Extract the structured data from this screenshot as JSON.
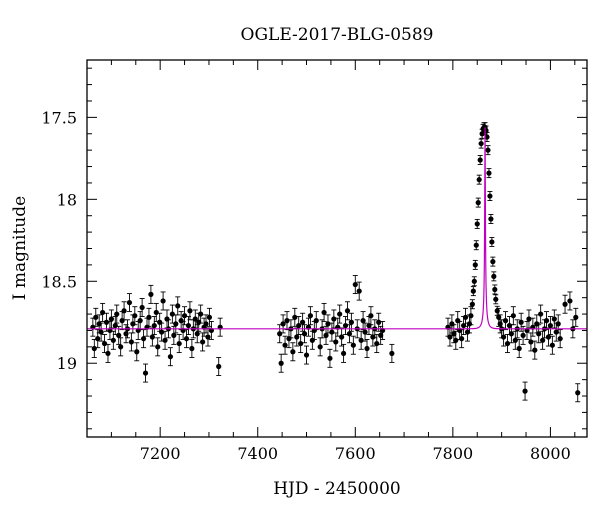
{
  "chart_data": {
    "type": "scatter",
    "title": "OGLE-2017-BLG-0589",
    "xlabel": "HJD - 2450000",
    "ylabel": "I magnitude",
    "xlim": [
      7050,
      8075
    ],
    "ylim": [
      19.45,
      17.15
    ],
    "y_inverted": true,
    "grid": false,
    "legend": "none",
    "x_ticks": [
      7200,
      7400,
      7600,
      7800,
      8000
    ],
    "y_ticks": [
      17.5,
      18,
      18.5,
      19
    ],
    "x_tick_labels": [
      "7200",
      "7400",
      "7600",
      "7800",
      "8000"
    ],
    "y_tick_labels": [
      "17.5",
      "18",
      "18.5",
      "19"
    ],
    "colors": {
      "points": "#000000",
      "model": "#c000c0"
    },
    "model": {
      "baseline": 18.79,
      "t0": 7866,
      "peak_mag": 17.56,
      "tE": 7.0,
      "u0": 0.083
    },
    "series": [
      {
        "points": [
          [
            7062,
            18.78
          ],
          [
            7065,
            18.91
          ],
          [
            7068,
            18.72
          ],
          [
            7072,
            18.85
          ],
          [
            7075,
            18.76
          ],
          [
            7079,
            18.81
          ],
          [
            7082,
            18.69
          ],
          [
            7086,
            18.88
          ],
          [
            7090,
            18.75
          ],
          [
            7093,
            18.94
          ],
          [
            7097,
            18.8
          ],
          [
            7100,
            18.73
          ],
          [
            7104,
            18.86
          ],
          [
            7108,
            18.77
          ],
          [
            7111,
            18.7
          ],
          [
            7115,
            18.83
          ],
          [
            7119,
            18.9
          ],
          [
            7122,
            18.74
          ],
          [
            7126,
            18.68
          ],
          [
            7130,
            18.82
          ],
          [
            7133,
            18.79
          ],
          [
            7137,
            18.63
          ],
          [
            7141,
            18.87
          ],
          [
            7144,
            18.76
          ],
          [
            7148,
            18.71
          ],
          [
            7152,
            18.93
          ],
          [
            7155,
            18.8
          ],
          [
            7159,
            18.74
          ],
          [
            7163,
            18.66
          ],
          [
            7166,
            18.85
          ],
          [
            7170,
            19.06
          ],
          [
            7173,
            18.78
          ],
          [
            7177,
            18.72
          ],
          [
            7181,
            18.58
          ],
          [
            7184,
            18.84
          ],
          [
            7188,
            18.77
          ],
          [
            7192,
            18.69
          ],
          [
            7195,
            18.9
          ],
          [
            7199,
            18.75
          ],
          [
            7203,
            18.81
          ],
          [
            7206,
            18.62
          ],
          [
            7210,
            18.86
          ],
          [
            7214,
            18.73
          ],
          [
            7217,
            18.79
          ],
          [
            7221,
            18.96
          ],
          [
            7225,
            18.7
          ],
          [
            7228,
            18.83
          ],
          [
            7232,
            18.76
          ],
          [
            7236,
            18.65
          ],
          [
            7239,
            18.88
          ],
          [
            7243,
            18.74
          ],
          [
            7247,
            18.8
          ],
          [
            7250,
            18.71
          ],
          [
            7254,
            18.85
          ],
          [
            7258,
            18.77
          ],
          [
            7261,
            18.68
          ],
          [
            7265,
            18.91
          ],
          [
            7268,
            18.79
          ],
          [
            7272,
            18.73
          ],
          [
            7276,
            18.82
          ],
          [
            7279,
            18.75
          ],
          [
            7283,
            18.7
          ],
          [
            7287,
            18.87
          ],
          [
            7290,
            18.78
          ],
          [
            7294,
            18.76
          ],
          [
            7298,
            18.84
          ],
          [
            7301,
            18.72
          ],
          [
            7305,
            18.8
          ],
          [
            7320,
            19.02
          ],
          [
            7323,
            18.78
          ],
          [
            7445,
            18.82
          ],
          [
            7448,
            19.0
          ],
          [
            7452,
            18.76
          ],
          [
            7456,
            18.89
          ],
          [
            7460,
            18.74
          ],
          [
            7464,
            18.85
          ],
          [
            7468,
            18.79
          ],
          [
            7472,
            18.93
          ],
          [
            7476,
            18.72
          ],
          [
            7480,
            18.84
          ],
          [
            7484,
            18.77
          ],
          [
            7488,
            18.88
          ],
          [
            7492,
            18.75
          ],
          [
            7496,
            18.82
          ],
          [
            7500,
            18.95
          ],
          [
            7504,
            18.78
          ],
          [
            7508,
            18.71
          ],
          [
            7512,
            18.86
          ],
          [
            7516,
            18.8
          ],
          [
            7520,
            18.74
          ],
          [
            7528,
            18.9
          ],
          [
            7532,
            18.79
          ],
          [
            7536,
            18.69
          ],
          [
            7540,
            18.83
          ],
          [
            7544,
            18.76
          ],
          [
            7548,
            18.97
          ],
          [
            7552,
            18.81
          ],
          [
            7556,
            18.73
          ],
          [
            7560,
            18.87
          ],
          [
            7564,
            18.78
          ],
          [
            7568,
            18.7
          ],
          [
            7572,
            18.84
          ],
          [
            7576,
            18.94
          ],
          [
            7580,
            18.77
          ],
          [
            7584,
            18.68
          ],
          [
            7588,
            18.82
          ],
          [
            7592,
            18.75
          ],
          [
            7596,
            18.89
          ],
          [
            7600,
            18.52
          ],
          [
            7604,
            18.79
          ],
          [
            7608,
            18.56
          ],
          [
            7612,
            18.86
          ],
          [
            7616,
            18.74
          ],
          [
            7620,
            18.81
          ],
          [
            7624,
            18.91
          ],
          [
            7628,
            18.77
          ],
          [
            7632,
            18.71
          ],
          [
            7636,
            18.84
          ],
          [
            7640,
            18.79
          ],
          [
            7644,
            18.88
          ],
          [
            7648,
            18.75
          ],
          [
            7652,
            18.83
          ],
          [
            7656,
            18.8
          ],
          [
            7675,
            18.94
          ],
          [
            7790,
            18.78
          ],
          [
            7794,
            18.84
          ],
          [
            7798,
            18.76
          ],
          [
            7802,
            18.82
          ],
          [
            7806,
            18.86
          ],
          [
            7810,
            18.74
          ],
          [
            7814,
            18.8
          ],
          [
            7818,
            18.85
          ],
          [
            7822,
            18.77
          ],
          [
            7826,
            18.72
          ],
          [
            7830,
            18.81
          ],
          [
            7834,
            18.76
          ],
          [
            7837,
            18.71
          ],
          [
            7840,
            18.64
          ],
          [
            7842,
            18.56
          ],
          [
            7844,
            18.5
          ],
          [
            7846,
            18.4
          ],
          [
            7848,
            18.28
          ],
          [
            7850,
            18.15
          ],
          [
            7852,
            18.02
          ],
          [
            7854,
            17.88
          ],
          [
            7856,
            17.76
          ],
          [
            7858,
            17.66
          ],
          [
            7860,
            17.6
          ],
          [
            7862,
            17.57
          ],
          [
            7864,
            17.56
          ],
          [
            7866,
            17.56
          ],
          [
            7868,
            17.58
          ],
          [
            7870,
            17.62
          ],
          [
            7872,
            17.7
          ],
          [
            7874,
            17.84
          ],
          [
            7876,
            17.98
          ],
          [
            7878,
            18.12
          ],
          [
            7880,
            18.26
          ],
          [
            7882,
            18.38
          ],
          [
            7884,
            18.47
          ],
          [
            7886,
            18.55
          ],
          [
            7888,
            18.61
          ],
          [
            7891,
            18.68
          ],
          [
            7894,
            18.72
          ],
          [
            7897,
            18.76
          ],
          [
            7900,
            18.79
          ],
          [
            7904,
            18.84
          ],
          [
            7908,
            18.74
          ],
          [
            7912,
            18.88
          ],
          [
            7916,
            18.77
          ],
          [
            7920,
            18.82
          ],
          [
            7924,
            18.71
          ],
          [
            7928,
            18.86
          ],
          [
            7932,
            18.79
          ],
          [
            7936,
            18.91
          ],
          [
            7940,
            18.75
          ],
          [
            7944,
            18.83
          ],
          [
            7948,
            19.17
          ],
          [
            7952,
            18.8
          ],
          [
            7956,
            18.73
          ],
          [
            7960,
            18.87
          ],
          [
            7964,
            18.78
          ],
          [
            7968,
            18.92
          ],
          [
            7972,
            18.76
          ],
          [
            7976,
            18.82
          ],
          [
            7980,
            18.7
          ],
          [
            7984,
            18.86
          ],
          [
            7988,
            18.79
          ],
          [
            7992,
            18.74
          ],
          [
            7996,
            18.84
          ],
          [
            8000,
            18.77
          ],
          [
            8004,
            18.89
          ],
          [
            8008,
            18.73
          ],
          [
            8012,
            18.81
          ],
          [
            8016,
            18.76
          ],
          [
            8020,
            18.85
          ],
          [
            8030,
            18.64
          ],
          [
            8040,
            18.62
          ],
          [
            8046,
            18.79
          ],
          [
            8052,
            18.72
          ],
          [
            8056,
            19.18
          ]
        ],
        "error": 0.055
      }
    ]
  }
}
